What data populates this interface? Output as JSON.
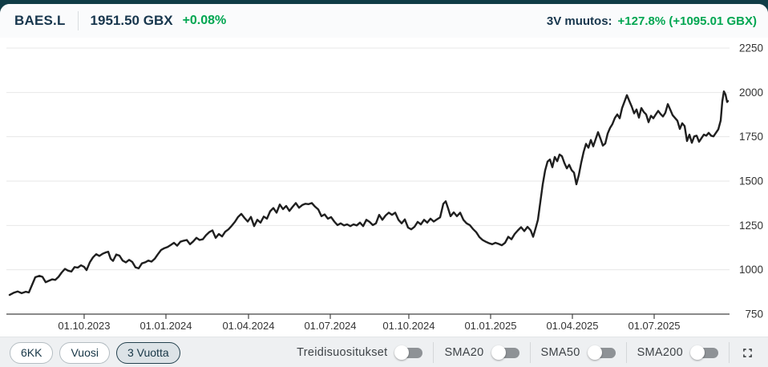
{
  "header": {
    "symbol": "BAES.L",
    "price": "1951.50 GBX",
    "change_percent": "+0.08%",
    "period_change_label": "3V muutos:",
    "period_change_value": "+127.8% (+1095.01 GBX)"
  },
  "toolbar": {
    "range_buttons": [
      {
        "label": "6KK",
        "selected": false
      },
      {
        "label": "Vuosi",
        "selected": false
      },
      {
        "label": "3 Vuotta",
        "selected": true
      }
    ],
    "toggles": [
      {
        "label": "Treidisuositukset",
        "on": false
      },
      {
        "label": "SMA20",
        "on": false
      },
      {
        "label": "SMA50",
        "on": false
      },
      {
        "label": "SMA200",
        "on": false
      }
    ],
    "fullscreen_icon": "expand-corners"
  },
  "colors": {
    "page_background": "#0f3c46",
    "card_background": "#fafbfc",
    "navy_text": "#17364d",
    "positive_green": "#00a651",
    "grid": "#e7e7e7",
    "axis": "#444444",
    "tick_label": "#333333",
    "price_line": "#1f1f1f"
  },
  "chart_data": {
    "type": "line",
    "title": "",
    "xlabel": "",
    "ylabel": "",
    "legend": "none",
    "grid": true,
    "ylim": [
      750,
      2250
    ],
    "yticks": [
      750,
      1000,
      1250,
      1500,
      1750,
      2000,
      2250
    ],
    "xticks": [
      {
        "label": "01.10.2023",
        "t": 0.1075
      },
      {
        "label": "01.01.2024",
        "t": 0.2206
      },
      {
        "label": "01.04.2024",
        "t": 0.3348
      },
      {
        "label": "01.07.2024",
        "t": 0.4479
      },
      {
        "label": "01.10.2024",
        "t": 0.5565
      },
      {
        "label": "01.01.2025",
        "t": 0.6696
      },
      {
        "label": "01.04.2025",
        "t": 0.7827
      },
      {
        "label": "01.07.2025",
        "t": 0.8958
      }
    ],
    "series": [
      {
        "name": "BAES.L price (GBX)",
        "points": [
          [
            0.0044,
            858
          ],
          [
            0.01,
            870
          ],
          [
            0.0155,
            878
          ],
          [
            0.0211,
            868
          ],
          [
            0.0266,
            876
          ],
          [
            0.031,
            872
          ],
          [
            0.0355,
            915
          ],
          [
            0.0399,
            958
          ],
          [
            0.0455,
            966
          ],
          [
            0.0499,
            960
          ],
          [
            0.0543,
            930
          ],
          [
            0.0588,
            938
          ],
          [
            0.0632,
            946
          ],
          [
            0.0676,
            943
          ],
          [
            0.0721,
            960
          ],
          [
            0.0765,
            985
          ],
          [
            0.0809,
            1005
          ],
          [
            0.0854,
            995
          ],
          [
            0.0898,
            990
          ],
          [
            0.0942,
            1015
          ],
          [
            0.0987,
            1012
          ],
          [
            0.1031,
            1025
          ],
          [
            0.1075,
            1016
          ],
          [
            0.1109,
            998
          ],
          [
            0.1153,
            1042
          ],
          [
            0.1197,
            1070
          ],
          [
            0.1242,
            1088
          ],
          [
            0.1286,
            1078
          ],
          [
            0.133,
            1090
          ],
          [
            0.1375,
            1098
          ],
          [
            0.1408,
            1102
          ],
          [
            0.1441,
            1062
          ],
          [
            0.1475,
            1050
          ],
          [
            0.1519,
            1086
          ],
          [
            0.1563,
            1080
          ],
          [
            0.1608,
            1052
          ],
          [
            0.1652,
            1042
          ],
          [
            0.1696,
            1056
          ],
          [
            0.1741,
            1044
          ],
          [
            0.1785,
            1014
          ],
          [
            0.1829,
            1008
          ],
          [
            0.1874,
            1036
          ],
          [
            0.1918,
            1042
          ],
          [
            0.1962,
            1052
          ],
          [
            0.2007,
            1046
          ],
          [
            0.2051,
            1062
          ],
          [
            0.2095,
            1088
          ],
          [
            0.214,
            1112
          ],
          [
            0.2184,
            1122
          ],
          [
            0.2228,
            1128
          ],
          [
            0.2273,
            1140
          ],
          [
            0.2317,
            1152
          ],
          [
            0.2361,
            1136
          ],
          [
            0.2406,
            1158
          ],
          [
            0.245,
            1164
          ],
          [
            0.2494,
            1168
          ],
          [
            0.2539,
            1144
          ],
          [
            0.2583,
            1160
          ],
          [
            0.2627,
            1180
          ],
          [
            0.2672,
            1168
          ],
          [
            0.2716,
            1172
          ],
          [
            0.276,
            1195
          ],
          [
            0.2805,
            1212
          ],
          [
            0.2849,
            1222
          ],
          [
            0.2894,
            1180
          ],
          [
            0.2938,
            1202
          ],
          [
            0.2982,
            1188
          ],
          [
            0.3027,
            1215
          ],
          [
            0.3071,
            1228
          ],
          [
            0.3115,
            1248
          ],
          [
            0.316,
            1270
          ],
          [
            0.3204,
            1298
          ],
          [
            0.3248,
            1315
          ],
          [
            0.3293,
            1292
          ],
          [
            0.3337,
            1272
          ],
          [
            0.3381,
            1298
          ],
          [
            0.3426,
            1246
          ],
          [
            0.347,
            1282
          ],
          [
            0.3514,
            1266
          ],
          [
            0.3559,
            1300
          ],
          [
            0.3603,
            1288
          ],
          [
            0.3647,
            1330
          ],
          [
            0.3692,
            1348
          ],
          [
            0.3736,
            1322
          ],
          [
            0.378,
            1368
          ],
          [
            0.3825,
            1342
          ],
          [
            0.3869,
            1360
          ],
          [
            0.3914,
            1332
          ],
          [
            0.3958,
            1355
          ],
          [
            0.4002,
            1376
          ],
          [
            0.4047,
            1350
          ],
          [
            0.4091,
            1365
          ],
          [
            0.4135,
            1372
          ],
          [
            0.418,
            1370
          ],
          [
            0.4224,
            1376
          ],
          [
            0.4268,
            1356
          ],
          [
            0.4313,
            1340
          ],
          [
            0.4357,
            1302
          ],
          [
            0.4401,
            1312
          ],
          [
            0.4446,
            1288
          ],
          [
            0.449,
            1297
          ],
          [
            0.4534,
            1272
          ],
          [
            0.4579,
            1252
          ],
          [
            0.4623,
            1262
          ],
          [
            0.4667,
            1250
          ],
          [
            0.4712,
            1256
          ],
          [
            0.4756,
            1246
          ],
          [
            0.48,
            1256
          ],
          [
            0.4845,
            1250
          ],
          [
            0.4889,
            1266
          ],
          [
            0.4933,
            1246
          ],
          [
            0.4978,
            1282
          ],
          [
            0.5022,
            1270
          ],
          [
            0.5067,
            1252
          ],
          [
            0.5111,
            1262
          ],
          [
            0.5155,
            1310
          ],
          [
            0.52,
            1282
          ],
          [
            0.5244,
            1306
          ],
          [
            0.5288,
            1322
          ],
          [
            0.5333,
            1310
          ],
          [
            0.5377,
            1322
          ],
          [
            0.5421,
            1282
          ],
          [
            0.5466,
            1262
          ],
          [
            0.551,
            1284
          ],
          [
            0.5554,
            1238
          ],
          [
            0.5599,
            1228
          ],
          [
            0.5643,
            1242
          ],
          [
            0.5687,
            1270
          ],
          [
            0.5732,
            1256
          ],
          [
            0.5776,
            1282
          ],
          [
            0.582,
            1266
          ],
          [
            0.5865,
            1288
          ],
          [
            0.5909,
            1272
          ],
          [
            0.5953,
            1284
          ],
          [
            0.5998,
            1296
          ],
          [
            0.6042,
            1372
          ],
          [
            0.6075,
            1386
          ],
          [
            0.6109,
            1346
          ],
          [
            0.6142,
            1302
          ],
          [
            0.6186,
            1324
          ],
          [
            0.623,
            1302
          ],
          [
            0.6275,
            1322
          ],
          [
            0.6319,
            1282
          ],
          [
            0.6364,
            1262
          ],
          [
            0.6408,
            1252
          ],
          [
            0.6452,
            1230
          ],
          [
            0.6497,
            1212
          ],
          [
            0.6541,
            1184
          ],
          [
            0.6585,
            1168
          ],
          [
            0.663,
            1158
          ],
          [
            0.6674,
            1150
          ],
          [
            0.6718,
            1144
          ],
          [
            0.6763,
            1152
          ],
          [
            0.6807,
            1146
          ],
          [
            0.6851,
            1138
          ],
          [
            0.6896,
            1152
          ],
          [
            0.694,
            1186
          ],
          [
            0.6984,
            1172
          ],
          [
            0.7029,
            1202
          ],
          [
            0.7073,
            1222
          ],
          [
            0.7117,
            1240
          ],
          [
            0.7162,
            1218
          ],
          [
            0.7206,
            1242
          ],
          [
            0.7251,
            1222
          ],
          [
            0.7284,
            1186
          ],
          [
            0.7317,
            1232
          ],
          [
            0.735,
            1282
          ],
          [
            0.7384,
            1382
          ],
          [
            0.7417,
            1482
          ],
          [
            0.745,
            1560
          ],
          [
            0.7483,
            1610
          ],
          [
            0.7517,
            1622
          ],
          [
            0.755,
            1578
          ],
          [
            0.7583,
            1636
          ],
          [
            0.7617,
            1612
          ],
          [
            0.765,
            1650
          ],
          [
            0.7683,
            1640
          ],
          [
            0.7716,
            1602
          ],
          [
            0.775,
            1572
          ],
          [
            0.7783,
            1592
          ],
          [
            0.7816,
            1562
          ],
          [
            0.7849,
            1548
          ],
          [
            0.7883,
            1482
          ],
          [
            0.7916,
            1534
          ],
          [
            0.7949,
            1604
          ],
          [
            0.7982,
            1664
          ],
          [
            0.8016,
            1710
          ],
          [
            0.8049,
            1688
          ],
          [
            0.8082,
            1732
          ],
          [
            0.8115,
            1696
          ],
          [
            0.8149,
            1736
          ],
          [
            0.8182,
            1776
          ],
          [
            0.8215,
            1740
          ],
          [
            0.8248,
            1700
          ],
          [
            0.8282,
            1712
          ],
          [
            0.8315,
            1768
          ],
          [
            0.8348,
            1800
          ],
          [
            0.8381,
            1822
          ],
          [
            0.8415,
            1856
          ],
          [
            0.8448,
            1876
          ],
          [
            0.8481,
            1854
          ],
          [
            0.8514,
            1912
          ],
          [
            0.8548,
            1948
          ],
          [
            0.8581,
            1985
          ],
          [
            0.8614,
            1952
          ],
          [
            0.8647,
            1920
          ],
          [
            0.8681,
            1882
          ],
          [
            0.8714,
            1904
          ],
          [
            0.8747,
            1858
          ],
          [
            0.878,
            1912
          ],
          [
            0.8814,
            1890
          ],
          [
            0.8847,
            1876
          ],
          [
            0.888,
            1832
          ],
          [
            0.8913,
            1868
          ],
          [
            0.8947,
            1854
          ],
          [
            0.898,
            1876
          ],
          [
            0.9013,
            1896
          ],
          [
            0.9047,
            1878
          ],
          [
            0.908,
            1864
          ],
          [
            0.9113,
            1886
          ],
          [
            0.9146,
            1934
          ],
          [
            0.918,
            1904
          ],
          [
            0.9213,
            1872
          ],
          [
            0.9246,
            1856
          ],
          [
            0.9279,
            1840
          ],
          [
            0.9313,
            1794
          ],
          [
            0.9346,
            1826
          ],
          [
            0.9379,
            1810
          ],
          [
            0.9412,
            1726
          ],
          [
            0.9446,
            1762
          ],
          [
            0.9479,
            1716
          ],
          [
            0.9512,
            1752
          ],
          [
            0.9545,
            1756
          ],
          [
            0.9579,
            1722
          ],
          [
            0.9612,
            1742
          ],
          [
            0.9645,
            1762
          ],
          [
            0.9678,
            1756
          ],
          [
            0.9712,
            1772
          ],
          [
            0.9745,
            1756
          ],
          [
            0.9778,
            1752
          ],
          [
            0.9811,
            1772
          ],
          [
            0.9845,
            1792
          ],
          [
            0.9878,
            1842
          ],
          [
            0.99,
            1950
          ],
          [
            0.9922,
            2006
          ],
          [
            0.9945,
            1988
          ],
          [
            0.9967,
            1946
          ],
          [
            0.9978,
            1951.5
          ]
        ]
      }
    ]
  }
}
